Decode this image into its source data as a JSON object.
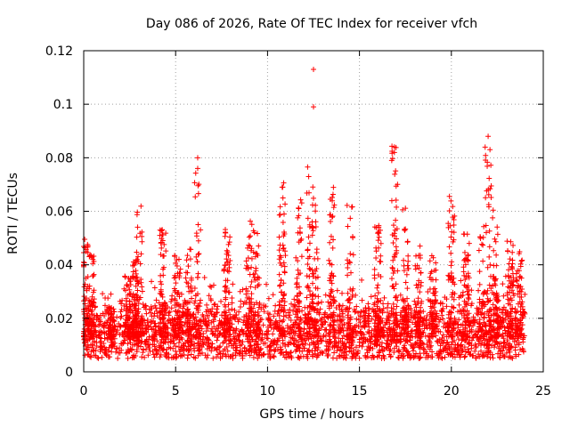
{
  "chart_data": {
    "type": "scatter",
    "title": "Day 086 of 2026, Rate Of TEC Index for receiver vfch",
    "xlabel": "GPS time / hours",
    "ylabel": "ROTI / TECUs",
    "xlim": [
      0,
      25
    ],
    "ylim": [
      0,
      0.12
    ],
    "xticks": [
      0,
      5,
      10,
      15,
      20,
      25
    ],
    "xtick_labels": [
      "0",
      "5",
      "10",
      "15",
      "20",
      "25"
    ],
    "yticks": [
      0,
      0.02,
      0.04,
      0.06,
      0.08,
      0.1,
      0.12
    ],
    "ytick_labels": [
      "0",
      "0.02",
      "0.04",
      "0.06",
      "0.08",
      "0.1",
      "0.12"
    ],
    "grid": true,
    "marker": "+",
    "marker_color": "#ff0000",
    "time_range_hours": [
      0,
      24
    ],
    "baseline_band": [
      0.005,
      0.028
    ],
    "bursts": [
      {
        "x": 0.1,
        "peak": 0.052
      },
      {
        "x": 0.4,
        "peak": 0.045
      },
      {
        "x": 1.5,
        "peak": 0.025
      },
      {
        "x": 2.4,
        "peak": 0.038
      },
      {
        "x": 2.8,
        "peak": 0.044
      },
      {
        "x": 3.0,
        "peak": 0.062
      },
      {
        "x": 4.3,
        "peak": 0.055
      },
      {
        "x": 5.1,
        "peak": 0.045
      },
      {
        "x": 5.7,
        "peak": 0.05
      },
      {
        "x": 6.2,
        "peak": 0.08
      },
      {
        "x": 7.8,
        "peak": 0.055
      },
      {
        "x": 9.0,
        "peak": 0.058
      },
      {
        "x": 9.4,
        "peak": 0.055
      },
      {
        "x": 10.8,
        "peak": 0.071
      },
      {
        "x": 11.7,
        "peak": 0.065
      },
      {
        "x": 12.3,
        "peak": 0.078
      },
      {
        "x": 12.6,
        "peak": 0.065
      },
      {
        "x": 13.5,
        "peak": 0.07
      },
      {
        "x": 14.5,
        "peak": 0.063
      },
      {
        "x": 16.0,
        "peak": 0.055
      },
      {
        "x": 16.9,
        "peak": 0.085
      },
      {
        "x": 17.5,
        "peak": 0.062
      },
      {
        "x": 18.2,
        "peak": 0.048
      },
      {
        "x": 19.0,
        "peak": 0.045
      },
      {
        "x": 20.0,
        "peak": 0.068
      },
      {
        "x": 20.8,
        "peak": 0.052
      },
      {
        "x": 21.6,
        "peak": 0.055
      },
      {
        "x": 22.0,
        "peak": 0.088
      },
      {
        "x": 22.4,
        "peak": 0.067
      },
      {
        "x": 23.2,
        "peak": 0.049
      },
      {
        "x": 23.7,
        "peak": 0.045
      }
    ],
    "outliers": [
      {
        "x": 12.5,
        "y": 0.113
      },
      {
        "x": 12.5,
        "y": 0.099
      },
      {
        "x": 16.9,
        "y": 0.084
      },
      {
        "x": 16.9,
        "y": 0.082
      },
      {
        "x": 22.0,
        "y": 0.088
      },
      {
        "x": 22.1,
        "y": 0.083
      },
      {
        "x": 6.2,
        "y": 0.08
      },
      {
        "x": 6.2,
        "y": 0.076
      }
    ]
  }
}
